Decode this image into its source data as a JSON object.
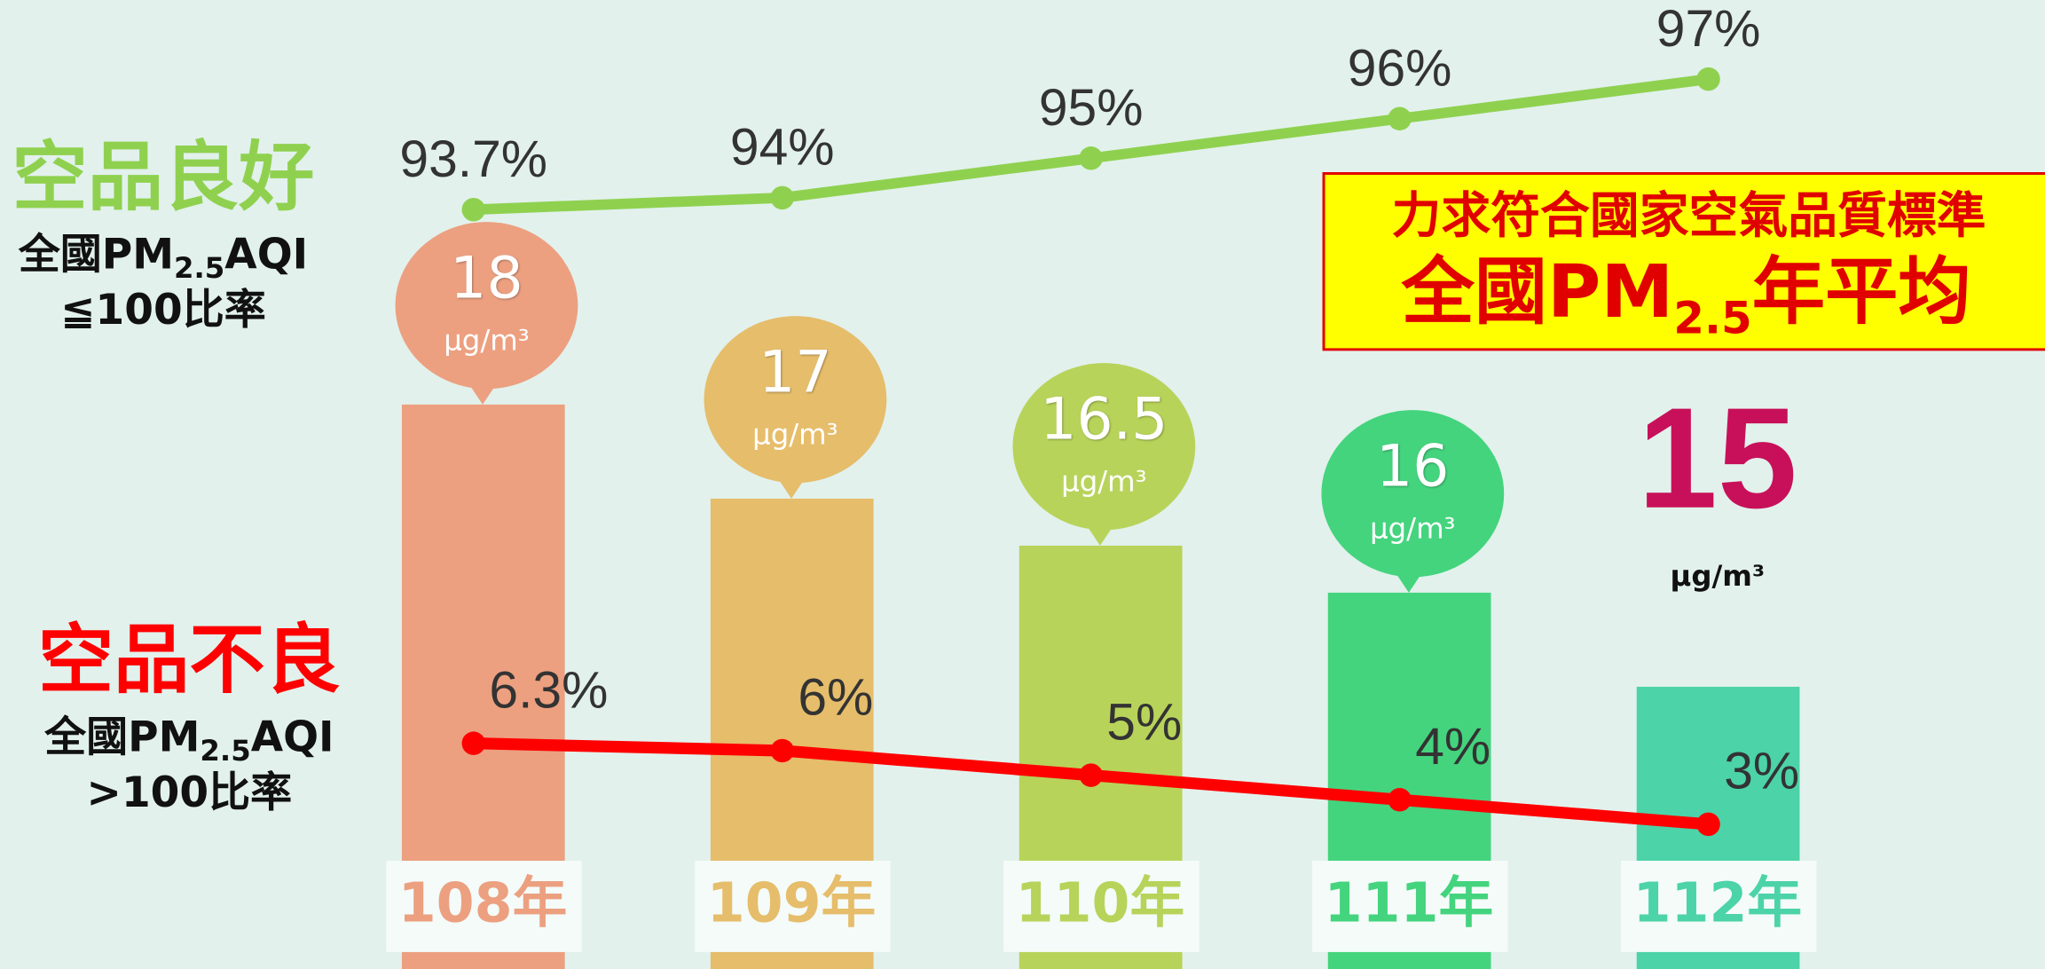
{
  "chart_data": {
    "type": "bar",
    "categories": [
      "108年",
      "109年",
      "110年",
      "111年",
      "112年"
    ],
    "unit": "μg/m³",
    "values": [
      18,
      17,
      16.5,
      16,
      15
    ],
    "colors": [
      "#eca080",
      "#e6bd6b",
      "#b8d35a",
      "#44d47e",
      "#4cd3a8"
    ],
    "ylim": [
      12,
      22.3
    ],
    "highlight_color": "#c8105a",
    "series": [
      {
        "name": "空品良好",
        "desc": [
          "全國PM",
          "2.5",
          "AQI"
        ],
        "desc2": "≦100比率",
        "color": "#8fd14f",
        "values": [
          93.7,
          94,
          95,
          96,
          97
        ],
        "value_labels": [
          "93.7%",
          "94%",
          "95%",
          "96%",
          "97%"
        ],
        "ylim": [
          74.5,
          99
        ]
      },
      {
        "name": "空品不良",
        "desc": [
          "全國PM",
          "2.5",
          "AQI"
        ],
        "desc2": ">100比率",
        "color": "#ff0000",
        "values": [
          6.3,
          6,
          5,
          4,
          3
        ],
        "value_labels": [
          "6.3%",
          "6%",
          "5%",
          "4%",
          "3%"
        ],
        "ylim": [
          -2.9,
          36.6
        ]
      }
    ],
    "annotation": {
      "line1": "力求符合國家空氣品質標準",
      "line2": [
        "全國PM",
        "2.5",
        "年平均"
      ]
    }
  }
}
